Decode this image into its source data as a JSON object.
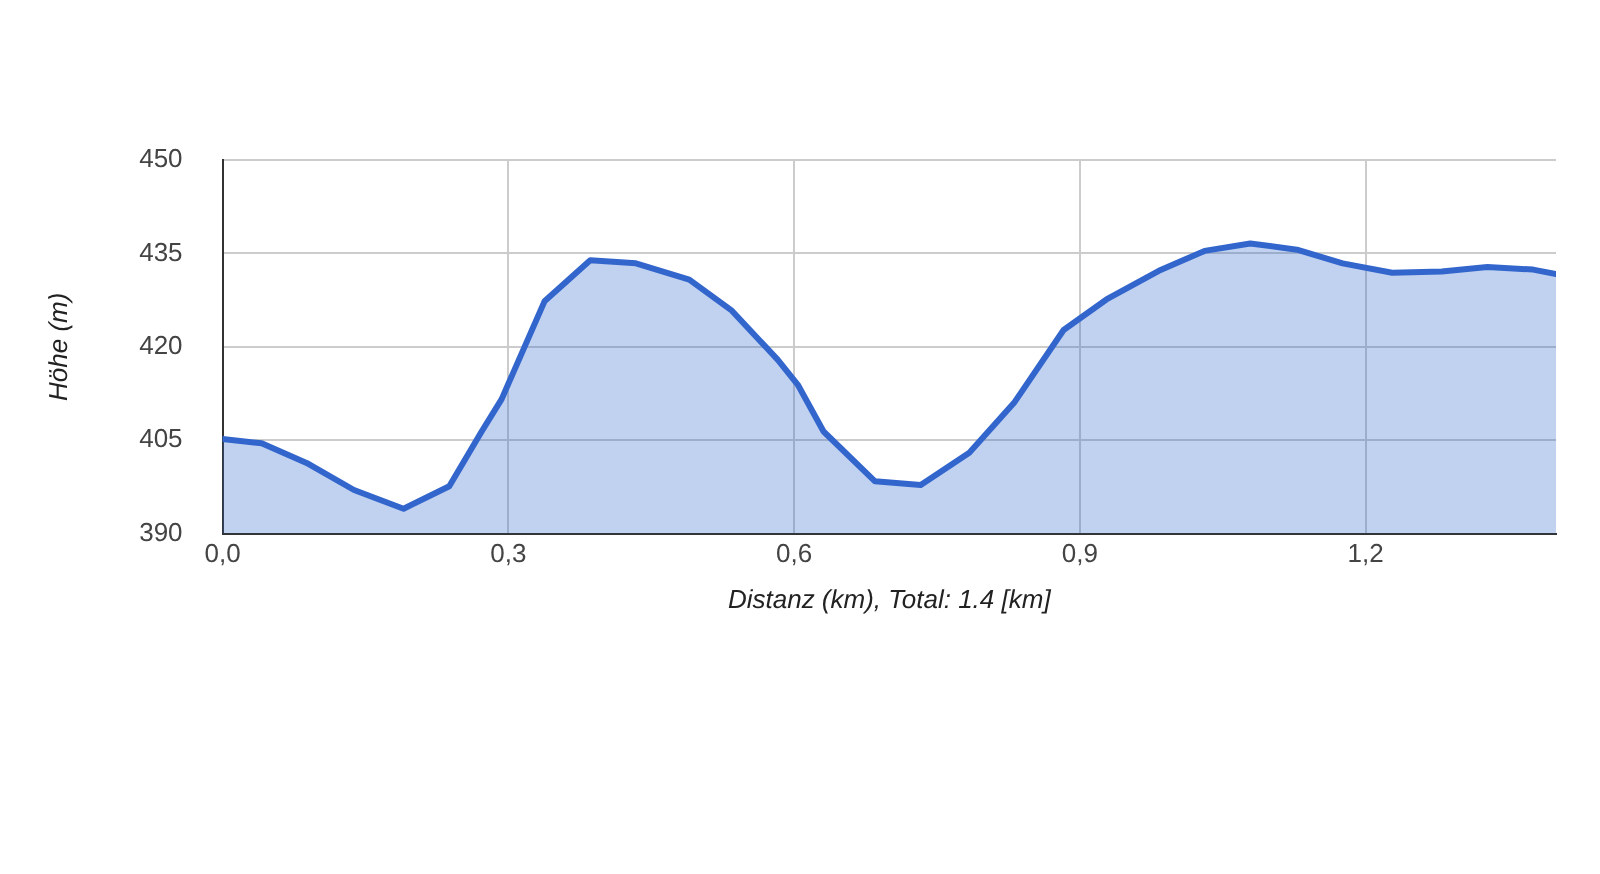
{
  "chart_data": {
    "type": "area",
    "xlabel": "Distanz (km), Total: 1.4 [km]",
    "ylabel": "Höhe (m)",
    "xlim": [
      0,
      1.4
    ],
    "ylim": [
      390,
      450
    ],
    "xticks": [
      {
        "value": 0,
        "label": "0,0"
      },
      {
        "value": 0.3,
        "label": "0,3"
      },
      {
        "value": 0.6,
        "label": "0,6"
      },
      {
        "value": 0.9,
        "label": "0,9"
      },
      {
        "value": 1.2,
        "label": "1,2"
      }
    ],
    "yticks": [
      390,
      405,
      420,
      435,
      450
    ],
    "grid": true,
    "legend": false,
    "series": [
      {
        "color": "#3366cc",
        "x": [
          0,
          0.041,
          0.09,
          0.138,
          0.19,
          0.238,
          0.272,
          0.293,
          0.338,
          0.386,
          0.434,
          0.49,
          0.534,
          0.583,
          0.604,
          0.631,
          0.685,
          0.733,
          0.784,
          0.831,
          0.883,
          0.928,
          0.983,
          1.031,
          1.079,
          1.128,
          1.176,
          1.228,
          1.28,
          1.328,
          1.376,
          1.4
        ],
        "values": [
          405.2,
          404.5,
          401.2,
          397,
          394,
          397.6,
          406.4,
          411.6,
          427.3,
          433.9,
          433.4,
          430.8,
          425.9,
          417.9,
          413.9,
          406.4,
          398.4,
          397.8,
          403,
          411,
          422.7,
          427.6,
          432.2,
          435.4,
          436.6,
          435.6,
          433.4,
          431.9,
          432.1,
          432.8,
          432.4,
          431.7
        ]
      }
    ]
  }
}
